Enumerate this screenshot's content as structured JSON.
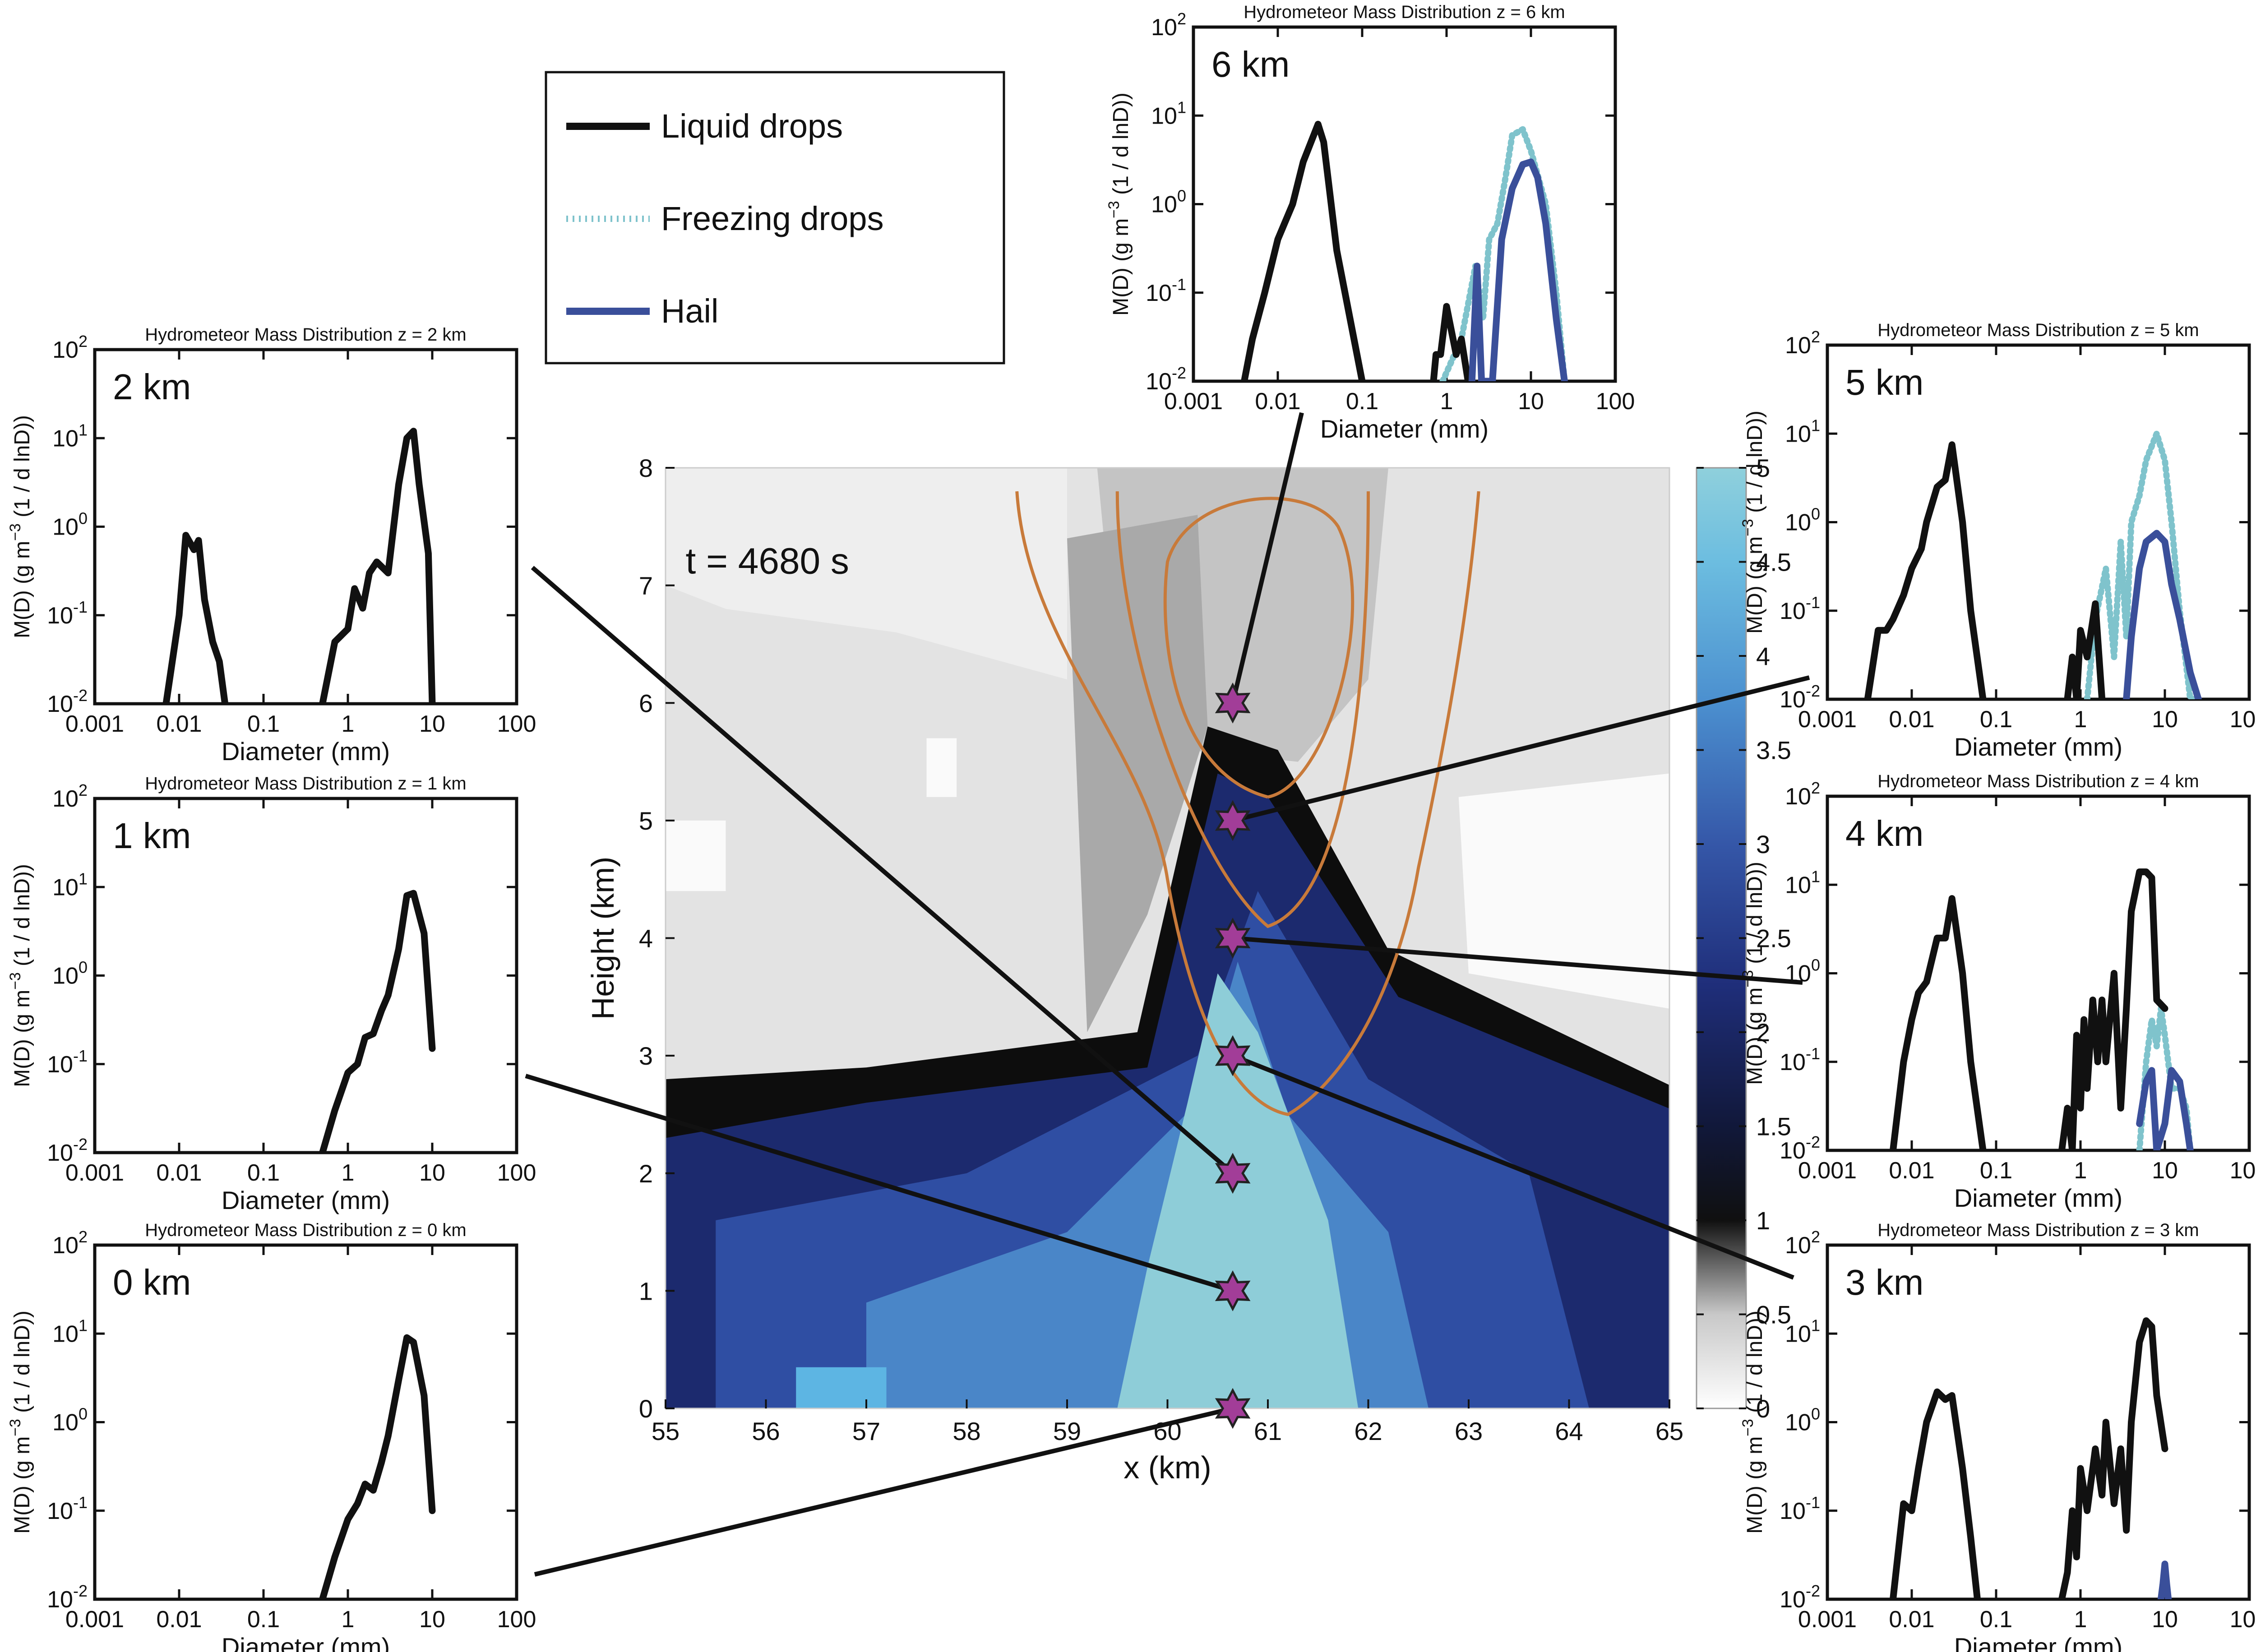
{
  "legend": {
    "items": [
      {
        "label": "Liquid drops",
        "style": "liquid"
      },
      {
        "label": "Freezing drops",
        "style": "freezing"
      },
      {
        "label": "Hail",
        "style": "hail"
      }
    ]
  },
  "styles": {
    "liquid": {
      "color": "#111111",
      "dash": ""
    },
    "freezing": {
      "color": "#7fc3cc",
      "dash": "6 6"
    },
    "hail": {
      "color": "#3a4f9a",
      "dash": ""
    }
  },
  "panel_axes": {
    "x_ticks": [
      "0.001",
      "0.01",
      "0.1",
      "1",
      "10",
      "100"
    ],
    "y_ticks": [
      "10",
      "10",
      "10",
      "10",
      "10"
    ],
    "y_tick_exps": [
      "-2",
      "-1",
      "0",
      "1",
      "2"
    ],
    "xlabel": "Diameter (mm)",
    "ylabel": "M(D) (g m",
    "ylabel_exp": "−3",
    "ylabel_tail": " (1 / d lnD))"
  },
  "center": {
    "time_label": "t = 4680 s",
    "xlabel": "x (km)",
    "ylabel": "Height (km)",
    "x_ticks": [
      "55",
      "56",
      "57",
      "58",
      "59",
      "60",
      "61",
      "62",
      "63",
      "64",
      "65"
    ],
    "y_ticks": [
      "0",
      "1",
      "2",
      "3",
      "4",
      "5",
      "6",
      "7",
      "8"
    ],
    "colorbar_ticks": [
      "0",
      "0.5",
      "1",
      "1.5",
      "2",
      "2.5",
      "3",
      "3.5",
      "4",
      "4.5",
      "5"
    ]
  },
  "chart_data": [
    {
      "type": "line",
      "title": "Hydrometeor Mass Distribution z = 6 km",
      "label": "6 km",
      "xscale": "log",
      "yscale": "log",
      "xlim": [
        0.001,
        100
      ],
      "ylim": [
        0.01,
        100
      ],
      "series": [
        {
          "style": "liquid",
          "x": [
            0.004,
            0.005,
            0.007,
            0.01,
            0.015,
            0.02,
            0.03,
            0.035,
            0.05,
            0.1
          ],
          "y": [
            0.01,
            0.03,
            0.1,
            0.4,
            1.0,
            3.0,
            8.0,
            5.0,
            0.3,
            0.01
          ]
        },
        {
          "style": "liquid",
          "x": [
            0.7,
            0.75,
            0.85,
            1.0,
            1.3,
            1.5,
            1.8
          ],
          "y": [
            0.01,
            0.02,
            0.02,
            0.07,
            0.02,
            0.03,
            0.01
          ]
        },
        {
          "style": "freezing",
          "x": [
            0.9,
            1.5,
            2.2,
            2.7,
            3.2,
            4.0,
            5.0,
            6.0,
            8.0,
            10.0,
            15.0,
            20.0,
            25.0
          ],
          "y": [
            0.01,
            0.03,
            0.2,
            0.05,
            0.4,
            0.6,
            2.0,
            6.0,
            7.0,
            4.0,
            1.0,
            0.1,
            0.01
          ]
        },
        {
          "style": "hail",
          "x": [
            2.0,
            2.3,
            2.6,
            3.0,
            3.5,
            4.5,
            6.0,
            8.0,
            10.0,
            12.0,
            15.0,
            20.0,
            25.0
          ],
          "y": [
            0.01,
            0.2,
            0.01,
            0.01,
            0.01,
            0.4,
            1.5,
            2.8,
            3.0,
            2.0,
            0.6,
            0.05,
            0.01
          ]
        }
      ]
    },
    {
      "type": "line",
      "title": "Hydrometeor Mass Distribution z = 2 km",
      "label": "2 km",
      "xscale": "log",
      "yscale": "log",
      "xlim": [
        0.001,
        100
      ],
      "ylim": [
        0.01,
        100
      ],
      "series": [
        {
          "style": "liquid",
          "x": [
            0.007,
            0.01,
            0.012,
            0.015,
            0.017,
            0.02,
            0.025,
            0.03,
            0.035
          ],
          "y": [
            0.01,
            0.1,
            0.8,
            0.55,
            0.7,
            0.15,
            0.05,
            0.03,
            0.01
          ]
        },
        {
          "style": "liquid",
          "x": [
            0.5,
            0.7,
            1.0,
            1.2,
            1.5,
            1.8,
            2.2,
            3.0,
            4.0,
            5.0,
            6.0,
            7.0,
            9.0,
            10.0
          ],
          "y": [
            0.01,
            0.05,
            0.07,
            0.2,
            0.12,
            0.3,
            0.4,
            0.3,
            3.0,
            10.0,
            12.0,
            3.0,
            0.5,
            0.01
          ]
        }
      ]
    },
    {
      "type": "line",
      "title": "Hydrometeor Mass Distribution z = 1 km",
      "label": "1 km",
      "xscale": "log",
      "yscale": "log",
      "xlim": [
        0.001,
        100
      ],
      "ylim": [
        0.01,
        100
      ],
      "series": [
        {
          "style": "liquid",
          "x": [
            0.5,
            0.7,
            1.0,
            1.3,
            1.6,
            2.0,
            2.5,
            3.0,
            4.0,
            5.0,
            6.0,
            8.0,
            10.0
          ],
          "y": [
            0.01,
            0.03,
            0.08,
            0.1,
            0.2,
            0.22,
            0.4,
            0.6,
            2.0,
            8.0,
            8.5,
            3.0,
            0.15
          ]
        }
      ]
    },
    {
      "type": "line",
      "title": "Hydrometeor Mass Distribution z = 0 km",
      "label": "0 km",
      "xscale": "log",
      "yscale": "log",
      "xlim": [
        0.001,
        100
      ],
      "ylim": [
        0.01,
        100
      ],
      "series": [
        {
          "style": "liquid",
          "x": [
            0.5,
            0.7,
            1.0,
            1.3,
            1.6,
            2.0,
            2.5,
            3.0,
            4.0,
            5.0,
            6.0,
            8.0,
            10.0
          ],
          "y": [
            0.01,
            0.03,
            0.08,
            0.12,
            0.2,
            0.17,
            0.35,
            0.7,
            3.0,
            9.0,
            8.0,
            2.0,
            0.1
          ]
        }
      ]
    },
    {
      "type": "line",
      "title": "Hydrometeor Mass Distribution z = 5 km",
      "label": "5 km",
      "xscale": "log",
      "yscale": "log",
      "xlim": [
        0.001,
        100
      ],
      "ylim": [
        0.01,
        100
      ],
      "series": [
        {
          "style": "liquid",
          "x": [
            0.003,
            0.004,
            0.005,
            0.006,
            0.008,
            0.01,
            0.013,
            0.015,
            0.02,
            0.025,
            0.03,
            0.04,
            0.05,
            0.07
          ],
          "y": [
            0.01,
            0.06,
            0.06,
            0.08,
            0.15,
            0.3,
            0.5,
            1.0,
            2.5,
            3.0,
            7.5,
            1.0,
            0.1,
            0.01
          ]
        },
        {
          "style": "liquid",
          "x": [
            0.7,
            0.8,
            0.9,
            1.0,
            1.2,
            1.5,
            1.8
          ],
          "y": [
            0.01,
            0.03,
            0.01,
            0.06,
            0.03,
            0.12,
            0.01
          ]
        },
        {
          "style": "freezing",
          "x": [
            1.2,
            1.5,
            2.0,
            2.5,
            3.0,
            3.5,
            4.0,
            5.0,
            6.0,
            8.0,
            10.0,
            12.0,
            15.0,
            20.0,
            25.0
          ],
          "y": [
            0.01,
            0.08,
            0.3,
            0.03,
            0.6,
            0.05,
            1.0,
            2.0,
            5.0,
            10.0,
            5.0,
            1.0,
            0.1,
            0.01,
            0.01
          ]
        },
        {
          "style": "hail",
          "x": [
            3.5,
            4.0,
            5.0,
            6.0,
            8.0,
            10.0,
            12.0,
            15.0,
            20.0,
            25.0
          ],
          "y": [
            0.01,
            0.05,
            0.3,
            0.6,
            0.75,
            0.6,
            0.2,
            0.08,
            0.02,
            0.01
          ]
        }
      ]
    },
    {
      "type": "line",
      "title": "Hydrometeor Mass Distribution z = 4 km",
      "label": "4 km",
      "xscale": "log",
      "yscale": "log",
      "xlim": [
        0.001,
        100
      ],
      "ylim": [
        0.01,
        100
      ],
      "series": [
        {
          "style": "liquid",
          "x": [
            0.006,
            0.008,
            0.01,
            0.012,
            0.015,
            0.02,
            0.025,
            0.03,
            0.04,
            0.05,
            0.07
          ],
          "y": [
            0.01,
            0.1,
            0.3,
            0.6,
            0.8,
            2.5,
            2.5,
            7.0,
            1.0,
            0.1,
            0.01
          ]
        },
        {
          "style": "liquid",
          "x": [
            0.6,
            0.7,
            0.8,
            0.9,
            1.0,
            1.1,
            1.2,
            1.4,
            1.6,
            1.8,
            2.0,
            2.5,
            3.0,
            3.5,
            4.0,
            5.0,
            6.0,
            7.0,
            8.0,
            10.0
          ],
          "y": [
            0.01,
            0.03,
            0.01,
            0.2,
            0.03,
            0.3,
            0.05,
            0.5,
            0.1,
            0.5,
            0.1,
            1.0,
            0.03,
            0.4,
            5.0,
            14.0,
            14.0,
            12.0,
            0.5,
            0.4
          ]
        },
        {
          "style": "freezing",
          "x": [
            5.0,
            6.0,
            7.0,
            8.0,
            9.0,
            10.0,
            12.0,
            15.0,
            18.0,
            20.0
          ],
          "y": [
            0.01,
            0.1,
            0.3,
            0.15,
            0.4,
            0.2,
            0.05,
            0.05,
            0.03,
            0.01
          ]
        },
        {
          "style": "hail",
          "x": [
            5.0,
            6.0,
            7.0,
            8.0,
            10.0,
            12.0,
            15.0,
            18.0,
            20.0
          ],
          "y": [
            0.02,
            0.06,
            0.08,
            0.01,
            0.02,
            0.08,
            0.06,
            0.02,
            0.01
          ]
        }
      ]
    },
    {
      "type": "line",
      "title": "Hydrometeor Mass Distribution z = 3 km",
      "label": "3 km",
      "xscale": "log",
      "yscale": "log",
      "xlim": [
        0.001,
        100
      ],
      "ylim": [
        0.01,
        100
      ],
      "series": [
        {
          "style": "liquid",
          "x": [
            0.006,
            0.008,
            0.01,
            0.012,
            0.015,
            0.02,
            0.025,
            0.03,
            0.04,
            0.05,
            0.06
          ],
          "y": [
            0.01,
            0.12,
            0.1,
            0.3,
            1.0,
            2.2,
            1.8,
            2.0,
            0.3,
            0.05,
            0.01
          ]
        },
        {
          "style": "liquid",
          "x": [
            0.6,
            0.7,
            0.8,
            0.9,
            1.0,
            1.2,
            1.5,
            1.8,
            2.0,
            2.5,
            3.0,
            3.5,
            4.0,
            5.0,
            6.0,
            7.0,
            8.0,
            10.0
          ],
          "y": [
            0.01,
            0.02,
            0.1,
            0.03,
            0.3,
            0.1,
            0.5,
            0.15,
            1.0,
            0.12,
            0.5,
            0.06,
            1.0,
            8.0,
            14.0,
            12.0,
            2.0,
            0.5
          ]
        },
        {
          "style": "hail",
          "x": [
            9.0,
            9.5,
            10.0,
            10.5,
            11.0
          ],
          "y": [
            0.01,
            0.015,
            0.025,
            0.015,
            0.01
          ]
        }
      ]
    }
  ]
}
